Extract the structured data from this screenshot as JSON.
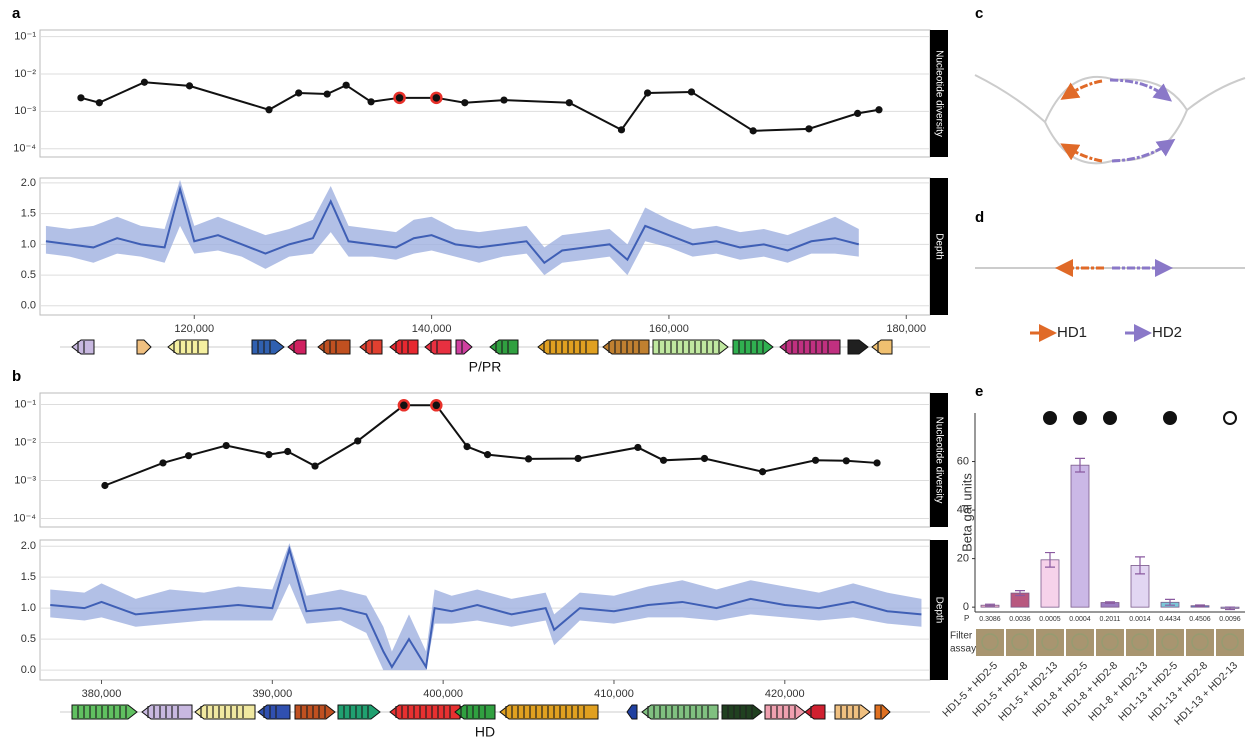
{
  "chart_data": [
    {
      "type": "line",
      "panel": "a",
      "strip_label": "Nucleotide diversity",
      "log_y": true,
      "grid": true,
      "color": "#111111",
      "highlight_color": "#e8312a",
      "highlighted_points": [
        9,
        10
      ],
      "x": [
        110450,
        112000,
        115800,
        119600,
        126300,
        128800,
        131200,
        132800,
        134900,
        137300,
        140400,
        142800,
        146100,
        151600,
        156000,
        158200,
        161900,
        167100,
        171800,
        175900,
        177700
      ],
      "values": [
        0.0023,
        0.0017,
        0.006,
        0.0048,
        0.0011,
        0.0031,
        0.0029,
        0.005,
        0.0018,
        0.0023,
        0.0023,
        0.0017,
        0.002,
        0.0017,
        0.00032,
        0.0031,
        0.0033,
        0.0003,
        0.00034,
        0.00088,
        0.0011
      ],
      "xlim": [
        107000,
        182000
      ],
      "ylim": [
        6e-05,
        0.15
      ],
      "yticks": [
        {
          "value": 0.1,
          "label": "10⁻¹"
        },
        {
          "value": 0.01,
          "label": "10⁻²"
        },
        {
          "value": 0.001,
          "label": "10⁻³"
        },
        {
          "value": 0.0001,
          "label": "10⁻⁴"
        }
      ]
    },
    {
      "type": "area-line",
      "strip_label": "Depth",
      "grid": true,
      "color": "#3f5fb5",
      "band_color": "#9fb0e0",
      "x": [
        107500,
        109500,
        111500,
        113500,
        115500,
        117500,
        118800,
        120000,
        122000,
        124000,
        126000,
        128000,
        130000,
        131500,
        133000,
        135000,
        137000,
        138500,
        140000,
        142000,
        144000,
        146000,
        148000,
        149500,
        151000,
        153000,
        155000,
        156500,
        158000,
        160000,
        162000,
        164000,
        166000,
        168000,
        170000,
        172000,
        174000,
        176000
      ],
      "values": [
        1.05,
        1.0,
        0.95,
        1.1,
        1.0,
        0.95,
        1.9,
        1.05,
        1.15,
        1.0,
        0.85,
        1.0,
        1.1,
        1.7,
        1.05,
        1.0,
        0.95,
        1.1,
        1.15,
        1.0,
        0.95,
        1.0,
        1.05,
        0.7,
        0.9,
        0.95,
        1.0,
        0.75,
        1.3,
        1.15,
        1.0,
        1.05,
        0.95,
        1.0,
        0.9,
        1.05,
        1.1,
        1.0
      ],
      "lower": [
        0.85,
        0.8,
        0.7,
        0.85,
        0.8,
        0.7,
        1.3,
        0.85,
        0.9,
        0.8,
        0.6,
        0.8,
        0.85,
        1.2,
        0.8,
        0.8,
        0.75,
        0.85,
        0.9,
        0.8,
        0.7,
        0.8,
        0.85,
        0.5,
        0.7,
        0.75,
        0.8,
        0.5,
        1.05,
        0.95,
        0.8,
        0.85,
        0.75,
        0.8,
        0.7,
        0.85,
        0.85,
        0.8
      ],
      "upper": [
        1.3,
        1.25,
        1.3,
        1.45,
        1.3,
        1.25,
        2.05,
        1.3,
        1.45,
        1.3,
        1.15,
        1.25,
        1.4,
        1.95,
        1.3,
        1.25,
        1.2,
        1.4,
        1.45,
        1.25,
        1.2,
        1.25,
        1.3,
        0.95,
        1.15,
        1.2,
        1.25,
        1.0,
        1.6,
        1.4,
        1.25,
        1.3,
        1.2,
        1.25,
        1.15,
        1.3,
        1.45,
        1.25
      ],
      "xlim": [
        107000,
        182000
      ],
      "ylim": [
        -0.15,
        2.08
      ],
      "yticks": [
        {
          "value": 0,
          "label": "0.0"
        },
        0.5,
        {
          "value": 1,
          "label": "1.0"
        },
        1.5,
        {
          "value": 2,
          "label": "2.0"
        }
      ],
      "xticks": [
        {
          "value": 120000,
          "label": "120,000"
        },
        {
          "value": 140000,
          "label": "140,000"
        },
        {
          "value": 160000,
          "label": "160,000"
        },
        {
          "value": 180000,
          "label": "180,000"
        }
      ],
      "gene_track_label": "P/PR"
    },
    {
      "type": "line",
      "panel": "b",
      "strip_label": "Nucleotide diversity",
      "log_y": true,
      "grid": true,
      "color": "#111111",
      "highlight_color": "#e8312a",
      "highlighted_points": [
        8,
        9
      ],
      "x": [
        380200,
        383600,
        385100,
        387300,
        389800,
        390900,
        392500,
        395000,
        397700,
        399600,
        401400,
        402600,
        405000,
        407900,
        411400,
        412900,
        415300,
        418700,
        421800,
        423600,
        425400
      ],
      "values": [
        0.00074,
        0.0029,
        0.0045,
        0.0083,
        0.0048,
        0.0058,
        0.0024,
        0.011,
        0.095,
        0.095,
        0.0078,
        0.0048,
        0.0037,
        0.0038,
        0.0074,
        0.0034,
        0.0038,
        0.0017,
        0.0034,
        0.0033,
        0.0029
      ],
      "xlim": [
        376400,
        428500
      ],
      "ylim": [
        6e-05,
        0.2
      ],
      "yticks": [
        {
          "value": 0.1,
          "label": "10⁻¹"
        },
        {
          "value": 0.01,
          "label": "10⁻²"
        },
        {
          "value": 0.001,
          "label": "10⁻³"
        },
        {
          "value": 0.0001,
          "label": "10⁻⁴"
        }
      ]
    },
    {
      "type": "area-line",
      "strip_label": "Depth",
      "grid": true,
      "color": "#3f5fb5",
      "band_color": "#9fb0e0",
      "x": [
        377000,
        379000,
        380000,
        382000,
        384000,
        386000,
        388000,
        390000,
        391000,
        392000,
        394000,
        395500,
        396500,
        397000,
        398000,
        399000,
        399500,
        400500,
        402000,
        404000,
        406000,
        406500,
        408000,
        410000,
        412000,
        414000,
        416000,
        418000,
        420000,
        422000,
        424000,
        426000,
        428000
      ],
      "values": [
        1.05,
        1.0,
        1.1,
        0.9,
        0.95,
        1.0,
        1.05,
        1.0,
        1.95,
        0.95,
        1.0,
        0.9,
        0.3,
        0.05,
        0.5,
        0.05,
        1.0,
        0.95,
        1.05,
        0.9,
        1.0,
        0.65,
        1.0,
        0.95,
        1.05,
        1.1,
        1.0,
        1.15,
        1.05,
        1.0,
        1.1,
        0.95,
        0.9
      ],
      "lower": [
        0.85,
        0.8,
        0.85,
        0.7,
        0.75,
        0.8,
        0.8,
        0.8,
        1.4,
        0.75,
        0.8,
        0.6,
        0.0,
        0.0,
        0.0,
        0.0,
        0.75,
        0.75,
        0.8,
        0.7,
        0.8,
        0.4,
        0.8,
        0.75,
        0.85,
        0.85,
        0.8,
        0.9,
        0.85,
        0.8,
        0.85,
        0.75,
        0.7
      ],
      "upper": [
        1.3,
        1.25,
        1.4,
        1.15,
        1.3,
        1.25,
        1.35,
        1.3,
        2.05,
        1.2,
        1.3,
        1.2,
        0.7,
        0.3,
        0.9,
        0.3,
        1.3,
        1.2,
        1.3,
        1.15,
        1.25,
        0.9,
        1.25,
        1.2,
        1.35,
        1.45,
        1.3,
        1.45,
        1.35,
        1.25,
        1.4,
        1.25,
        1.15
      ],
      "xlim": [
        376400,
        428500
      ],
      "ylim": [
        -0.16,
        2.1
      ],
      "yticks": [
        {
          "value": 0,
          "label": "0.0"
        },
        0.5,
        {
          "value": 1,
          "label": "1.0"
        },
        1.5,
        {
          "value": 2,
          "label": "2.0"
        }
      ],
      "xticks": [
        {
          "value": 380000,
          "label": "380,000"
        },
        {
          "value": 390000,
          "label": "390,000"
        },
        {
          "value": 400000,
          "label": "400,000"
        },
        {
          "value": 410000,
          "label": "410,000"
        },
        {
          "value": 420000,
          "label": "420,000"
        }
      ],
      "gene_track_label": "HD"
    },
    {
      "type": "bar",
      "panel": "e",
      "y_label": "Beta gal units",
      "p_label": "P",
      "categories": [
        "HD1-5 + HD2-5",
        "HD1-5 + HD2-8",
        "HD1-5 + HD2-13",
        "HD1-8 + HD2-5",
        "HD1-8 + HD2-8",
        "HD1-8 + HD2-13",
        "HD1-13 + HD2-5",
        "HD1-13 + HD2-8",
        "HD1-13 + HD2-13"
      ],
      "values": [
        0.8,
        5.8,
        19.5,
        58.5,
        1.9,
        17.2,
        2.0,
        0.6,
        -0.5
      ],
      "errors": [
        0.4,
        1.0,
        3.0,
        2.8,
        0.3,
        3.5,
        1.2,
        0.3,
        0.5
      ],
      "p_values": [
        0.3086,
        0.0036,
        0.0005,
        0.0004,
        0.2011,
        0.0014,
        0.4434,
        0.4506,
        0.0096
      ],
      "colors": [
        "#f2b8cc",
        "#b8587f",
        "#f6d2ea",
        "#cbb8e6",
        "#9a7cc0",
        "#e2d6f2",
        "#7cc8d8",
        "#5b86c4",
        "#b0cfe8"
      ],
      "markers": [
        null,
        null,
        "filled",
        "filled",
        "filled",
        null,
        "filled",
        null,
        "open"
      ],
      "filter_assay_label": [
        "Filter",
        "assay"
      ],
      "ylim": [
        -2,
        80
      ],
      "yticks": [
        0,
        20,
        40,
        60
      ]
    }
  ],
  "diagrams": [
    {
      "panel": "c"
    },
    {
      "panel": "d"
    }
  ],
  "legend": [
    {
      "name": "HD1",
      "color": "#e06a28"
    },
    {
      "name": "HD2",
      "color": "#8a78c8"
    }
  ]
}
